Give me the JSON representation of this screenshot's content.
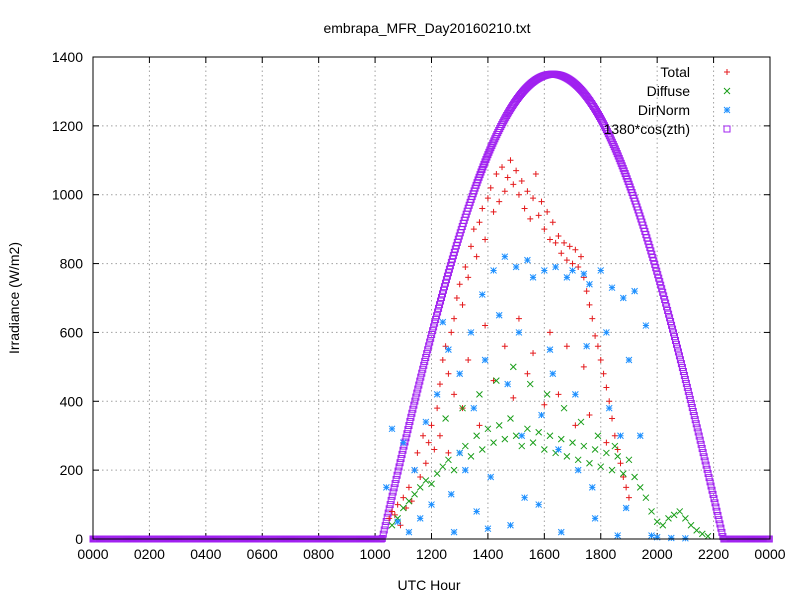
{
  "chart_data": {
    "type": "scatter",
    "title": "embrapa_MFR_Day20160210.txt",
    "xlabel": "UTC Hour",
    "ylabel": "Irradiance (W/m2)",
    "xlim": [
      0,
      24
    ],
    "ylim": [
      0,
      1400
    ],
    "x_ticks": [
      "0000",
      "0200",
      "0400",
      "0600",
      "0800",
      "1000",
      "1200",
      "1400",
      "1600",
      "1800",
      "2000",
      "2200",
      "0000"
    ],
    "y_ticks": [
      0,
      200,
      400,
      600,
      800,
      1000,
      1200,
      1400
    ],
    "grid": true,
    "legend_position": "top-right",
    "colors": {
      "total": "#e41a1c",
      "diffuse": "#1a9e1a",
      "dirnorm": "#1e90ff",
      "clear": "#a020f0"
    },
    "series": [
      {
        "name": "Total",
        "marker": "plus",
        "color": "#e41a1c",
        "points": [
          [
            10.5,
            60
          ],
          [
            10.6,
            80
          ],
          [
            10.7,
            70
          ],
          [
            10.8,
            100
          ],
          [
            10.9,
            40
          ],
          [
            11.0,
            120
          ],
          [
            11.1,
            90
          ],
          [
            11.2,
            150
          ],
          [
            11.3,
            110
          ],
          [
            11.4,
            200
          ],
          [
            11.5,
            250
          ],
          [
            11.6,
            180
          ],
          [
            11.7,
            300
          ],
          [
            11.8,
            220
          ],
          [
            11.9,
            280
          ],
          [
            12.0,
            330
          ],
          [
            12.1,
            260
          ],
          [
            12.2,
            380
          ],
          [
            12.3,
            450
          ],
          [
            12.4,
            520
          ],
          [
            12.5,
            560
          ],
          [
            12.6,
            480
          ],
          [
            12.7,
            600
          ],
          [
            12.8,
            640
          ],
          [
            12.9,
            700
          ],
          [
            13.0,
            740
          ],
          [
            13.1,
            680
          ],
          [
            13.2,
            790
          ],
          [
            13.3,
            760
          ],
          [
            13.4,
            850
          ],
          [
            13.5,
            900
          ],
          [
            13.6,
            820
          ],
          [
            13.7,
            920
          ],
          [
            13.8,
            960
          ],
          [
            13.9,
            870
          ],
          [
            14.0,
            990
          ],
          [
            14.1,
            1020
          ],
          [
            14.2,
            950
          ],
          [
            14.3,
            1060
          ],
          [
            14.4,
            980
          ],
          [
            14.5,
            1080
          ],
          [
            14.6,
            1010
          ],
          [
            14.7,
            1050
          ],
          [
            14.8,
            1100
          ],
          [
            14.9,
            1030
          ],
          [
            15.0,
            1070
          ],
          [
            15.1,
            1000
          ],
          [
            15.2,
            1040
          ],
          [
            15.3,
            960
          ],
          [
            15.4,
            1010
          ],
          [
            15.5,
            930
          ],
          [
            15.6,
            990
          ],
          [
            15.7,
            1060
          ],
          [
            15.8,
            940
          ],
          [
            15.9,
            980
          ],
          [
            16.0,
            900
          ],
          [
            16.1,
            950
          ],
          [
            16.2,
            870
          ],
          [
            16.3,
            920
          ],
          [
            16.4,
            860
          ],
          [
            16.5,
            880
          ],
          [
            16.6,
            830
          ],
          [
            16.7,
            860
          ],
          [
            16.8,
            810
          ],
          [
            16.9,
            850
          ],
          [
            17.0,
            800
          ],
          [
            17.1,
            840
          ],
          [
            17.2,
            790
          ],
          [
            17.3,
            820
          ],
          [
            17.4,
            760
          ],
          [
            17.5,
            720
          ],
          [
            17.6,
            680
          ],
          [
            17.7,
            640
          ],
          [
            17.8,
            590
          ],
          [
            17.9,
            560
          ],
          [
            18.0,
            520
          ],
          [
            18.1,
            480
          ],
          [
            18.2,
            440
          ],
          [
            18.3,
            400
          ],
          [
            18.4,
            350
          ],
          [
            18.5,
            300
          ],
          [
            18.6,
            260
          ],
          [
            18.7,
            220
          ],
          [
            18.8,
            180
          ],
          [
            18.9,
            150
          ],
          [
            19.0,
            120
          ],
          [
            12.3,
            300
          ],
          [
            12.8,
            420
          ],
          [
            13.3,
            520
          ],
          [
            13.9,
            620
          ],
          [
            14.6,
            560
          ],
          [
            15.1,
            640
          ],
          [
            15.6,
            540
          ],
          [
            16.2,
            600
          ],
          [
            16.8,
            560
          ],
          [
            17.4,
            500
          ],
          [
            13.1,
            380
          ],
          [
            14.2,
            460
          ],
          [
            15.4,
            480
          ],
          [
            16.5,
            420
          ],
          [
            17.6,
            360
          ],
          [
            12.6,
            250
          ],
          [
            13.7,
            330
          ],
          [
            14.9,
            410
          ],
          [
            16.0,
            390
          ],
          [
            17.1,
            330
          ],
          [
            18.2,
            280
          ]
        ]
      },
      {
        "name": "Diffuse",
        "marker": "cross",
        "color": "#1a9e1a",
        "points": [
          [
            10.6,
            40
          ],
          [
            10.8,
            60
          ],
          [
            11.0,
            90
          ],
          [
            11.2,
            110
          ],
          [
            11.4,
            130
          ],
          [
            11.6,
            150
          ],
          [
            11.8,
            170
          ],
          [
            12.0,
            160
          ],
          [
            12.2,
            190
          ],
          [
            12.4,
            210
          ],
          [
            12.6,
            230
          ],
          [
            12.8,
            200
          ],
          [
            13.0,
            250
          ],
          [
            13.2,
            270
          ],
          [
            13.4,
            240
          ],
          [
            13.6,
            300
          ],
          [
            13.8,
            260
          ],
          [
            14.0,
            320
          ],
          [
            14.2,
            280
          ],
          [
            14.4,
            330
          ],
          [
            14.6,
            290
          ],
          [
            14.8,
            350
          ],
          [
            15.0,
            300
          ],
          [
            15.2,
            270
          ],
          [
            15.4,
            320
          ],
          [
            15.6,
            280
          ],
          [
            15.8,
            310
          ],
          [
            16.0,
            260
          ],
          [
            16.2,
            300
          ],
          [
            16.4,
            250
          ],
          [
            16.6,
            290
          ],
          [
            16.8,
            240
          ],
          [
            17.0,
            280
          ],
          [
            17.2,
            230
          ],
          [
            17.4,
            270
          ],
          [
            17.6,
            220
          ],
          [
            17.8,
            260
          ],
          [
            18.0,
            210
          ],
          [
            18.2,
            250
          ],
          [
            18.4,
            200
          ],
          [
            18.6,
            240
          ],
          [
            18.8,
            190
          ],
          [
            19.0,
            230
          ],
          [
            19.2,
            180
          ],
          [
            19.4,
            150
          ],
          [
            19.6,
            120
          ],
          [
            19.8,
            80
          ],
          [
            20.0,
            50
          ],
          [
            20.2,
            40
          ],
          [
            20.4,
            60
          ],
          [
            20.6,
            70
          ],
          [
            20.8,
            80
          ],
          [
            21.0,
            60
          ],
          [
            21.2,
            40
          ],
          [
            21.4,
            25
          ],
          [
            21.6,
            15
          ],
          [
            21.8,
            8
          ],
          [
            12.5,
            350
          ],
          [
            13.1,
            380
          ],
          [
            13.7,
            420
          ],
          [
            14.3,
            460
          ],
          [
            14.9,
            500
          ],
          [
            15.5,
            450
          ],
          [
            16.1,
            420
          ],
          [
            16.7,
            380
          ],
          [
            17.3,
            340
          ],
          [
            17.9,
            300
          ],
          [
            18.5,
            270
          ]
        ]
      },
      {
        "name": "DirNorm",
        "marker": "star",
        "color": "#1e90ff",
        "points": [
          [
            10.4,
            150
          ],
          [
            10.6,
            320
          ],
          [
            10.8,
            50
          ],
          [
            11.0,
            280
          ],
          [
            11.2,
            20
          ],
          [
            11.4,
            200
          ],
          [
            11.6,
            60
          ],
          [
            11.8,
            340
          ],
          [
            12.0,
            100
          ],
          [
            12.2,
            420
          ],
          [
            12.4,
            630
          ],
          [
            12.6,
            550
          ],
          [
            12.8,
            20
          ],
          [
            13.0,
            480
          ],
          [
            13.2,
            200
          ],
          [
            13.4,
            600
          ],
          [
            13.6,
            80
          ],
          [
            13.8,
            710
          ],
          [
            14.0,
            30
          ],
          [
            14.2,
            780
          ],
          [
            14.4,
            650
          ],
          [
            14.6,
            820
          ],
          [
            14.8,
            40
          ],
          [
            15.0,
            790
          ],
          [
            15.2,
            300
          ],
          [
            15.4,
            810
          ],
          [
            15.6,
            760
          ],
          [
            15.8,
            100
          ],
          [
            16.0,
            780
          ],
          [
            16.2,
            550
          ],
          [
            16.4,
            790
          ],
          [
            16.6,
            20
          ],
          [
            16.8,
            760
          ],
          [
            17.0,
            780
          ],
          [
            17.2,
            200
          ],
          [
            17.4,
            770
          ],
          [
            17.6,
            740
          ],
          [
            17.8,
            60
          ],
          [
            18.0,
            780
          ],
          [
            18.2,
            600
          ],
          [
            18.4,
            730
          ],
          [
            18.6,
            10
          ],
          [
            18.8,
            700
          ],
          [
            19.0,
            520
          ],
          [
            19.2,
            720
          ],
          [
            19.4,
            300
          ],
          [
            19.6,
            620
          ],
          [
            19.8,
            10
          ],
          [
            20.0,
            5
          ],
          [
            20.5,
            3
          ],
          [
            21.0,
            2
          ],
          [
            13.0,
            250
          ],
          [
            13.5,
            380
          ],
          [
            14.1,
            180
          ],
          [
            14.7,
            450
          ],
          [
            15.3,
            120
          ],
          [
            15.9,
            360
          ],
          [
            16.5,
            260
          ],
          [
            17.1,
            420
          ],
          [
            17.7,
            150
          ],
          [
            18.3,
            380
          ],
          [
            18.9,
            90
          ],
          [
            12.7,
            130
          ],
          [
            13.9,
            520
          ],
          [
            15.1,
            600
          ],
          [
            16.3,
            480
          ],
          [
            17.5,
            560
          ],
          [
            18.7,
            300
          ]
        ]
      },
      {
        "name": "1380*cos(zth)",
        "marker": "square",
        "color": "#a020f0",
        "curve": {
          "peak_x": 16.3,
          "peak_y": 1350,
          "rise_x": 10.25,
          "set_x": 22.35
        }
      }
    ]
  }
}
